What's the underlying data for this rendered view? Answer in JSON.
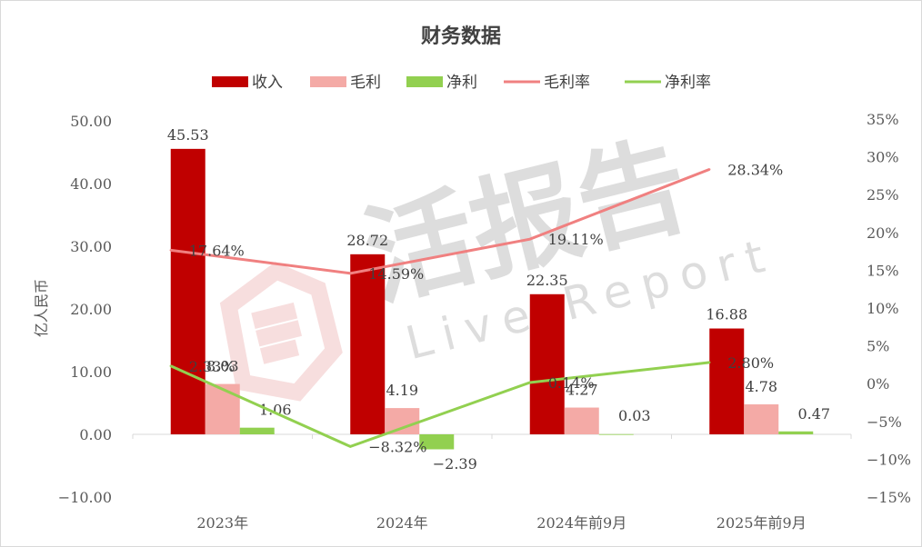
{
  "chart_data": {
    "type": "bar",
    "title": "财务数据",
    "ylabel": "亿人民币",
    "categories": [
      "2023年",
      "2024年",
      "2024年前9月",
      "2025年前9月"
    ],
    "ylim": [
      -10,
      50
    ],
    "y_ticks": [
      "50.00",
      "40.00",
      "30.00",
      "20.00",
      "10.00",
      "0.00",
      "−10.00"
    ],
    "y2lim": [
      -15,
      35
    ],
    "y2_ticks": [
      "35%",
      "30%",
      "25%",
      "20%",
      "15%",
      "10%",
      "5%",
      "0%",
      "−5%",
      "−10%",
      "−15%"
    ],
    "legend_position": "top",
    "series": [
      {
        "name": "收入",
        "kind": "bar",
        "axis": "left",
        "color": "#c00000",
        "values": [
          45.53,
          28.72,
          22.35,
          16.88
        ],
        "labels": [
          "45.53",
          "28.72",
          "22.35",
          "16.88"
        ]
      },
      {
        "name": "毛利",
        "kind": "bar",
        "axis": "left",
        "color": "#f4aaa6",
        "values": [
          8.03,
          4.19,
          4.27,
          4.78
        ],
        "labels": [
          "8.03",
          "4.19",
          "4.27",
          "4.78"
        ]
      },
      {
        "name": "净利",
        "kind": "bar",
        "axis": "left",
        "color": "#92d050",
        "values": [
          1.06,
          -2.39,
          0.03,
          0.47
        ],
        "labels": [
          "1.06",
          "−2.39",
          "0.03",
          "0.47"
        ]
      },
      {
        "name": "毛利率",
        "kind": "line",
        "axis": "right",
        "color": "#f08080",
        "label_color": "#e00000",
        "values": [
          17.64,
          14.59,
          19.11,
          28.34
        ],
        "labels": [
          "17.64%",
          "14.59%",
          "19.11%",
          "28.34%"
        ]
      },
      {
        "name": "净利率",
        "kind": "line",
        "axis": "right",
        "color": "#92d050",
        "label_color": "#00b050",
        "values": [
          2.33,
          -8.32,
          0.14,
          2.8
        ],
        "labels": [
          "2.33%",
          "−8.32%",
          "0.14%",
          "2.80%"
        ]
      }
    ],
    "grid": false,
    "watermark": {
      "main": "活报告",
      "sub": "Live Report"
    }
  }
}
